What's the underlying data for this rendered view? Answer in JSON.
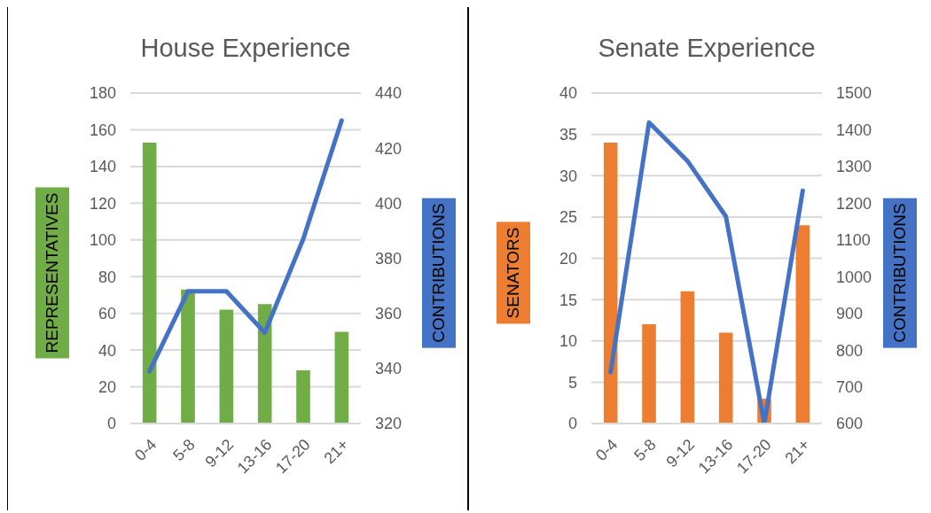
{
  "chart_data": [
    {
      "type": "bar",
      "title": "House Experience",
      "categories": [
        "0-4",
        "5-8",
        "9-12",
        "13-16",
        "17-20",
        "21+"
      ],
      "ylabel": "REPRESENTATIVES",
      "y2label": "CONTRIBUTIONS",
      "series": [
        {
          "color": "#70ad47",
          "values": [
            153,
            73,
            62,
            65,
            29,
            50
          ]
        },
        {
          "type": "line",
          "axis": "y2",
          "color": "#4472c4",
          "values": [
            339,
            368,
            368,
            353,
            387,
            430
          ]
        }
      ],
      "ylim": [
        0,
        180
      ],
      "yticks": [
        0,
        20,
        40,
        60,
        80,
        100,
        120,
        140,
        160,
        180
      ],
      "y2lim": [
        320,
        440
      ],
      "y2ticks": [
        320,
        340,
        360,
        380,
        400,
        420,
        440
      ],
      "grid": "y",
      "legend": false,
      "marker": "none"
    },
    {
      "type": "bar",
      "title": "Senate Experience",
      "categories": [
        "0-4",
        "5-8",
        "9-12",
        "13-16",
        "17-20",
        "21+"
      ],
      "ylabel": "SENATORS",
      "y2label": "CONTRIBUTIONS",
      "series": [
        {
          "color": "#ed7d31",
          "values": [
            34,
            12,
            16,
            11,
            3,
            24
          ]
        },
        {
          "type": "line",
          "axis": "y2",
          "color": "#4472c4",
          "values": [
            740,
            1420,
            1315,
            1164,
            600,
            1234
          ]
        }
      ],
      "ylim": [
        0,
        40
      ],
      "yticks": [
        0,
        5,
        10,
        15,
        20,
        25,
        30,
        35,
        40
      ],
      "y2lim": [
        600,
        1500
      ],
      "y2ticks": [
        600,
        700,
        800,
        900,
        1000,
        1100,
        1200,
        1300,
        1400,
        1500
      ],
      "grid": "y",
      "legend": false,
      "marker": "none"
    }
  ]
}
